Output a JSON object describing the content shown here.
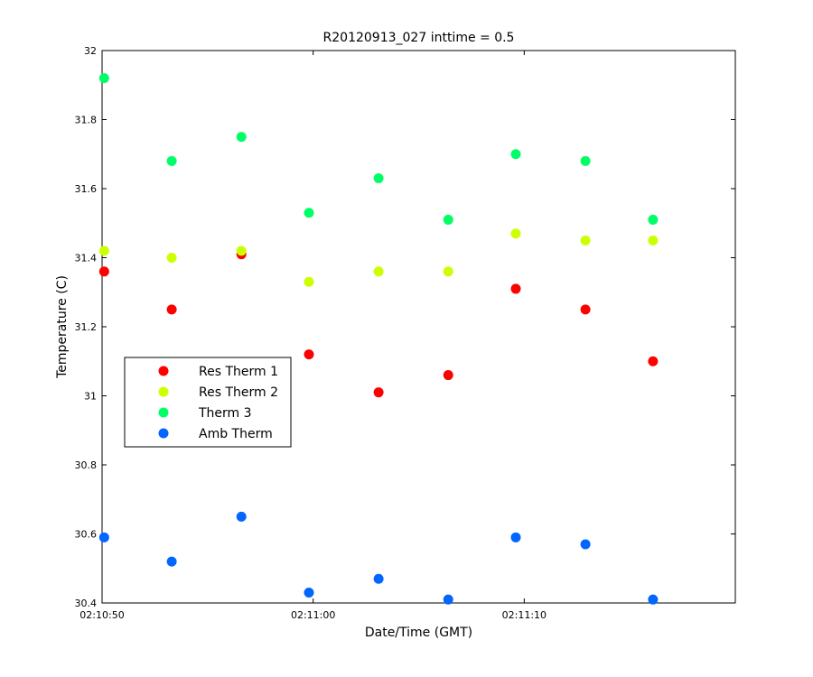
{
  "chart_data": {
    "type": "scatter",
    "title": "R20120913_027 inttime = 0.5",
    "xlabel": "Date/Time (GMT)",
    "ylabel": "Temperature (C)",
    "x_unit": "seconds after 02:10:50",
    "xlim": [
      0,
      30
    ],
    "ylim": [
      30.4,
      32
    ],
    "x_ticks": [
      {
        "value": 0,
        "label": "02:10:50"
      },
      {
        "value": 10,
        "label": "02:11:00"
      },
      {
        "value": 20,
        "label": "02:11:10"
      }
    ],
    "y_ticks": [
      {
        "value": 30.4,
        "label": "30.4"
      },
      {
        "value": 30.6,
        "label": "30.6"
      },
      {
        "value": 30.8,
        "label": "30.8"
      },
      {
        "value": 31.0,
        "label": "31"
      },
      {
        "value": 31.2,
        "label": "31.2"
      },
      {
        "value": 31.4,
        "label": "31.4"
      },
      {
        "value": 31.6,
        "label": "31.6"
      },
      {
        "value": 31.8,
        "label": "31.8"
      },
      {
        "value": 32.0,
        "label": "32"
      }
    ],
    "grid": false,
    "legend_position": "left",
    "x": [
      0.1,
      3.3,
      6.6,
      9.8,
      13.1,
      16.4,
      19.6,
      22.9,
      26.1
    ],
    "series": [
      {
        "name": "Res Therm 1",
        "color": "#ff0000",
        "values": [
          31.36,
          31.25,
          31.41,
          31.12,
          31.01,
          31.06,
          31.31,
          31.25,
          31.1
        ]
      },
      {
        "name": "Res Therm 2",
        "color": "#ccff00",
        "values": [
          31.42,
          31.4,
          31.42,
          31.33,
          31.36,
          31.36,
          31.47,
          31.45,
          31.45
        ]
      },
      {
        "name": "Therm 3",
        "color": "#00ff66",
        "values": [
          31.92,
          31.68,
          31.75,
          31.53,
          31.63,
          31.51,
          31.7,
          31.68,
          31.51
        ]
      },
      {
        "name": "Amb Therm",
        "color": "#0066ff",
        "values": [
          30.59,
          30.52,
          30.65,
          30.43,
          30.47,
          30.41,
          30.59,
          30.57,
          30.41
        ]
      }
    ]
  }
}
